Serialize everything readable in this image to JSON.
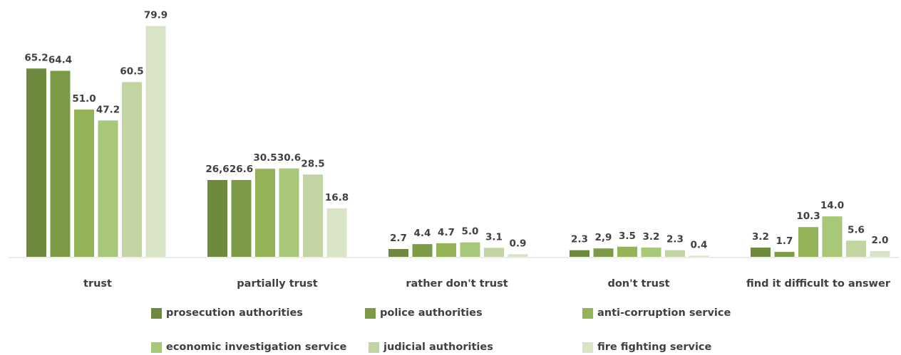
{
  "chart_data": {
    "type": "bar",
    "categories": [
      "trust",
      "partially trust",
      "rather don't trust",
      "don't trust",
      "find it difficult to answer"
    ],
    "series": [
      {
        "name": "prosecution authorities",
        "color": "#6e8a3e",
        "values": [
          65.2,
          26.6,
          2.7,
          2.3,
          3.2
        ],
        "labels": [
          "65.2",
          "26,6",
          "2.7",
          "2.3",
          "3.2"
        ]
      },
      {
        "name": "police authorities",
        "color": "#7d9b46",
        "values": [
          64.4,
          26.6,
          4.4,
          2.9,
          1.7
        ],
        "labels": [
          "64.4",
          "26.6",
          "4.4",
          "2,9",
          "1.7"
        ]
      },
      {
        "name": "anti-corruption service",
        "color": "#93b356",
        "values": [
          51.0,
          30.5,
          4.7,
          3.5,
          10.3
        ],
        "labels": [
          "51.0",
          "30.5",
          "4.7",
          "3.5",
          "10.3"
        ]
      },
      {
        "name": "economic investigation service",
        "color": "#a9c778",
        "values": [
          47.2,
          30.6,
          5.0,
          3.2,
          14.0
        ],
        "labels": [
          "47.2",
          "30.6",
          "5.0",
          "3.2",
          "14.0"
        ]
      },
      {
        "name": "judicial authorities",
        "color": "#c2d4a2",
        "values": [
          60.5,
          28.5,
          3.1,
          2.3,
          5.6
        ],
        "labels": [
          "60.5",
          "28.5",
          "3.1",
          "2.3",
          "5.6"
        ]
      },
      {
        "name": "fire fighting service",
        "color": "#d9e4c7",
        "values": [
          79.9,
          16.8,
          0.9,
          0.4,
          2.0
        ],
        "labels": [
          "79.9",
          "16.8",
          "0.9",
          "0.4",
          "2.0"
        ]
      }
    ],
    "ylim": [
      0,
      80
    ],
    "grid": false,
    "legend_position": "bottom"
  }
}
